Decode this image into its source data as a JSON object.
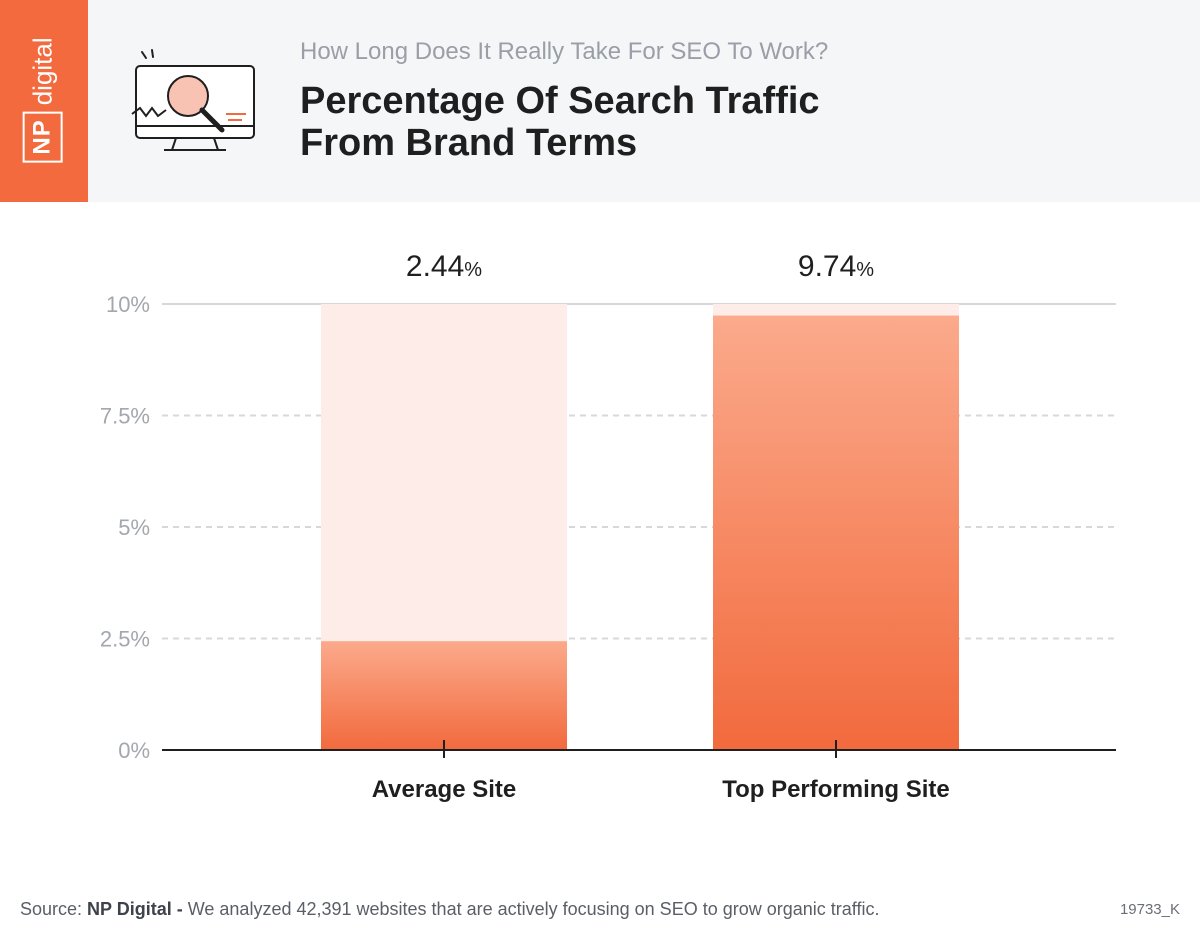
{
  "brand": {
    "box": "NP",
    "word": "digital"
  },
  "header": {
    "supertitle": "How Long Does It Really Take For SEO To Work?",
    "title_line1": "Percentage Of Search Traffic",
    "title_line2": "From Brand Terms"
  },
  "icons": {
    "illustration": "monitor-magnifier-icon"
  },
  "chart_data": {
    "type": "bar",
    "categories": [
      "Average Site",
      "Top Performing Site"
    ],
    "values": [
      2.44,
      9.74
    ],
    "data_labels": [
      "2.44",
      "9.74"
    ],
    "label_unit": "%",
    "yticks": [
      "0%",
      "2.5%",
      "5%",
      "7.5%",
      "10%"
    ],
    "ylim": [
      0,
      10
    ],
    "grid": true,
    "colors": {
      "bar_top": "#fbaa8c",
      "bar_bottom": "#f26a3d",
      "track": "#fdece8",
      "axis": "#1f1f1f",
      "grid": "#d6d8db"
    }
  },
  "footer": {
    "prefix": "Source: ",
    "source": "NP Digital -",
    "text": " We analyzed 42,391 websites that are actively focusing on SEO to grow organic traffic.",
    "code": "19733_K"
  }
}
